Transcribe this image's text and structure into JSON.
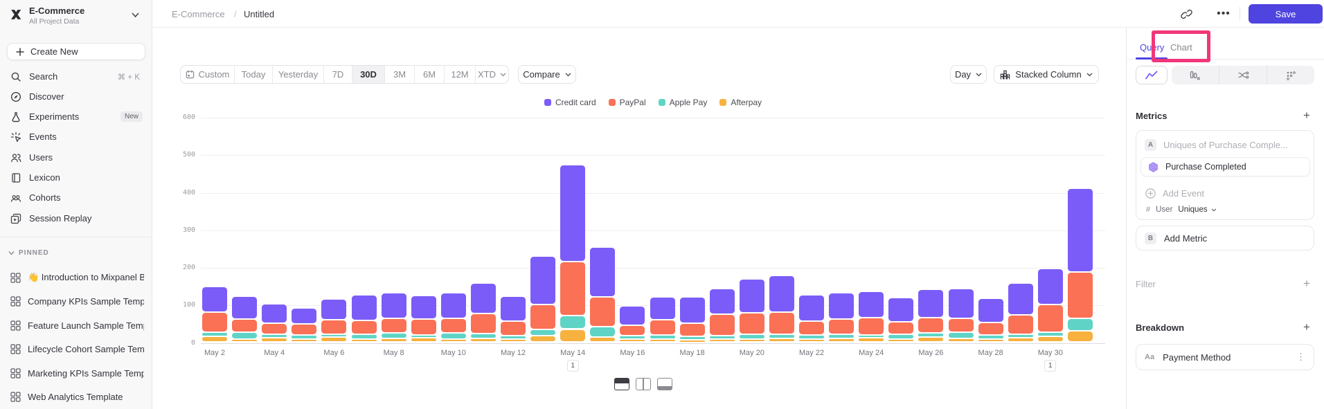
{
  "workspace": {
    "name": "E-Commerce",
    "subtitle": "All Project Data"
  },
  "sidebar": {
    "create_new": "Create New",
    "items": [
      {
        "label": "Search",
        "shortcut": "⌘ + K"
      },
      {
        "label": "Discover"
      },
      {
        "label": "Experiments",
        "badge": "New"
      },
      {
        "label": "Events"
      },
      {
        "label": "Users"
      },
      {
        "label": "Lexicon"
      },
      {
        "label": "Cohorts"
      },
      {
        "label": "Session Replay"
      }
    ],
    "pinned_header": "PINNED",
    "pinned": [
      "👋 Introduction to Mixpanel Boards",
      "Company KPIs Sample Template",
      "Feature Launch Sample Template",
      "Lifecycle Cohort Sample Template",
      "Marketing KPIs Sample Template",
      "Web Analytics Template"
    ]
  },
  "topbar": {
    "breadcrumb": [
      "E-Commerce",
      "Untitled"
    ],
    "save_label": "Save"
  },
  "toolbar": {
    "ranges": [
      "Custom",
      "Today",
      "Yesterday",
      "7D",
      "30D",
      "3M",
      "6M",
      "12M",
      "XTD"
    ],
    "active_range": "30D",
    "compare_label": "Compare",
    "granularity": "Day",
    "chart_type_label": "Stacked Column"
  },
  "panel": {
    "tabs": [
      "Query",
      "Chart"
    ],
    "active_tab": "Query",
    "metrics_title": "Metrics",
    "metric_a": {
      "letter": "A",
      "placeholder": "Uniques of Purchase Comple...",
      "event": "Purchase Completed",
      "add_event": "Add Event",
      "agg_prefix": "#",
      "agg_entity": "User",
      "agg_value": "Uniques"
    },
    "metric_b": {
      "letter": "B",
      "label": "Add Metric"
    },
    "filter_label": "Filter",
    "breakdown_label": "Breakdown",
    "breakdown": {
      "type_chip": "Aa",
      "label": "Payment Method"
    }
  },
  "chart_data": {
    "type": "bar",
    "stacked": true,
    "title": "Untitled",
    "xlabel": "",
    "ylabel": "",
    "ylim": [
      0,
      600
    ],
    "ytick_step": 100,
    "grid": true,
    "legend_position": "top-center",
    "categories": [
      "May 2",
      "May 3",
      "May 4",
      "May 5",
      "May 6",
      "May 7",
      "May 8",
      "May 9",
      "May 10",
      "May 11",
      "May 12",
      "May 13",
      "May 14",
      "May 15",
      "May 16",
      "May 17",
      "May 18",
      "May 19",
      "May 20",
      "May 21",
      "May 22",
      "May 23",
      "May 24",
      "May 25",
      "May 26",
      "May 27",
      "May 28",
      "May 29",
      "May 30",
      "May 31"
    ],
    "series": [
      {
        "name": "Credit card",
        "color": "#7C5CF8",
        "values": [
          68,
          60,
          51,
          42,
          55,
          69,
          67,
          62,
          67,
          80,
          67,
          130,
          258,
          134,
          52,
          61,
          70,
          68,
          90,
          98,
          69,
          70,
          70,
          63,
          75,
          79,
          65,
          85,
          97,
          223
        ]
      },
      {
        "name": "PayPal",
        "color": "#FA7155",
        "values": [
          53,
          36,
          29,
          29,
          38,
          37,
          39,
          42,
          39,
          54,
          38,
          65,
          143,
          78,
          27,
          39,
          35,
          57,
          56,
          58,
          38,
          39,
          45,
          33,
          42,
          38,
          32,
          51,
          73,
          123
        ]
      },
      {
        "name": "Apple Pay",
        "color": "#5FD4C6",
        "values": [
          12,
          18,
          10,
          12,
          8,
          12,
          15,
          8,
          17,
          13,
          10,
          17,
          36,
          29,
          10,
          12,
          9,
          10,
          14,
          12,
          10,
          12,
          8,
          13,
          10,
          16,
          12,
          10,
          12,
          34
        ]
      },
      {
        "name": "Afterpay",
        "color": "#F7B13F",
        "values": [
          15,
          8,
          12,
          8,
          14,
          9,
          10,
          12,
          8,
          10,
          8,
          18,
          35,
          13,
          8,
          8,
          6,
          8,
          8,
          10,
          9,
          10,
          12,
          9,
          14,
          10,
          8,
          12,
          15,
          30
        ]
      }
    ],
    "stack_bottom_to_top": [
      "Afterpay",
      "Apple Pay",
      "PayPal",
      "Credit card"
    ],
    "annotations": [
      {
        "index": 12,
        "label": "1"
      },
      {
        "index": 28,
        "label": "1"
      }
    ]
  }
}
